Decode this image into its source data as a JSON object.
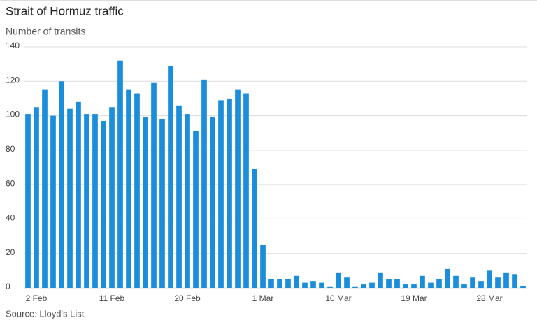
{
  "chart_data": {
    "type": "bar",
    "title": "Strait of Hormuz traffic",
    "subtitle": "Number of transits",
    "source": "Source: Lloyd's List",
    "categories": [
      null,
      "2 Feb",
      null,
      null,
      null,
      null,
      null,
      null,
      null,
      null,
      "11 Feb",
      null,
      null,
      null,
      null,
      null,
      null,
      null,
      null,
      "20 Feb",
      null,
      null,
      null,
      null,
      null,
      null,
      null,
      null,
      "1 Mar",
      null,
      null,
      null,
      null,
      null,
      null,
      null,
      null,
      "10 Mar",
      null,
      null,
      null,
      null,
      null,
      null,
      null,
      null,
      "19 Mar",
      null,
      null,
      null,
      null,
      null,
      null,
      null,
      null,
      "28 Mar",
      null,
      null,
      null,
      null
    ],
    "values": [
      101,
      105,
      115,
      100,
      120,
      104,
      108,
      101,
      101,
      97,
      105,
      132,
      115,
      113,
      99,
      119,
      98,
      129,
      106,
      101,
      91,
      121,
      99,
      109,
      110,
      115,
      113,
      69,
      25,
      5,
      5,
      5,
      7,
      3,
      4,
      3,
      0.5,
      9,
      6,
      0.5,
      2,
      3,
      9,
      5,
      5,
      2,
      2,
      7,
      3,
      5,
      11,
      7,
      2,
      6,
      4,
      10,
      6,
      9,
      8,
      1
    ],
    "color": "#1a8ddb",
    "ylim": [
      0,
      140
    ],
    "yticks": [
      0,
      20,
      40,
      60,
      80,
      100,
      120,
      140
    ],
    "grid": true
  }
}
